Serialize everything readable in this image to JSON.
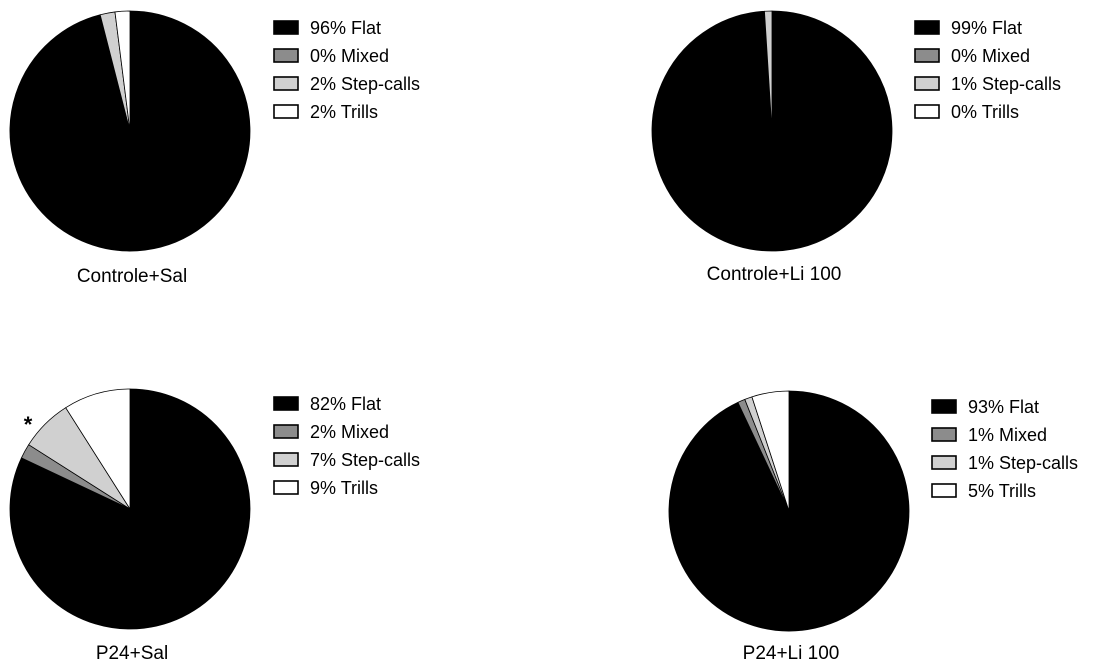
{
  "chart_data": [
    {
      "type": "pie",
      "title": "Controle+Sal",
      "categories": [
        "Flat",
        "Mixed",
        "Step-calls",
        "Trills"
      ],
      "values": [
        96,
        0,
        2,
        2
      ],
      "legend": [
        "96%  Flat",
        "0%  Mixed",
        "2%  Step-calls",
        "2%  Trills"
      ],
      "annotation": ""
    },
    {
      "type": "pie",
      "title": "Controle+Li 100",
      "categories": [
        "Flat",
        "Mixed",
        "Step-calls",
        "Trills"
      ],
      "values": [
        99,
        0,
        1,
        0
      ],
      "legend": [
        "99%  Flat",
        "0%  Mixed",
        "1%  Step-calls",
        "0%  Trills"
      ],
      "annotation": ""
    },
    {
      "type": "pie",
      "title": "P24+Sal",
      "categories": [
        "Flat",
        "Mixed",
        "Step-calls",
        "Trills"
      ],
      "values": [
        82,
        2,
        7,
        9
      ],
      "legend": [
        "82%  Flat",
        "2%  Mixed",
        "7%  Step-calls",
        "9%  Trills"
      ],
      "annotation": "*"
    },
    {
      "type": "pie",
      "title": "P24+Li 100",
      "categories": [
        "Flat",
        "Mixed",
        "Step-calls",
        "Trills"
      ],
      "values": [
        93,
        1,
        1,
        5
      ],
      "legend": [
        "93%  Flat",
        "1%  Mixed",
        "1%  Step-calls",
        "5%  Trills"
      ],
      "annotation": ""
    }
  ],
  "colors": {
    "Flat": "#000000",
    "Mixed": "#8c8c8c",
    "Step-calls": "#d0d0d0",
    "Trills": "#ffffff"
  },
  "legend_placement": "right"
}
